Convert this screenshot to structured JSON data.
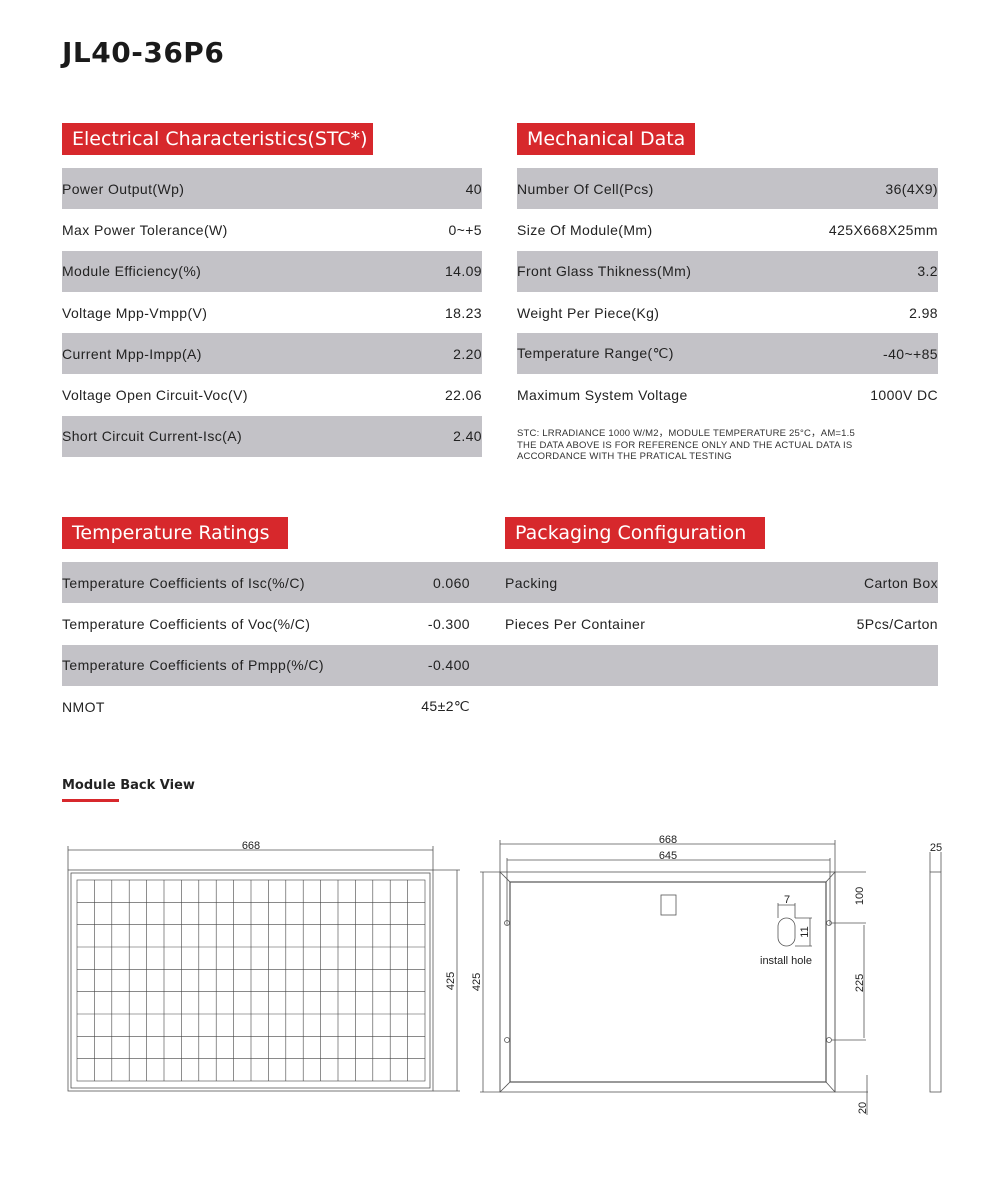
{
  "title": "JL40-36P6",
  "electrical": {
    "heading": "Electrical Characteristics(STC*)",
    "rows": [
      {
        "label": "Power Output(Wp)",
        "value": "40"
      },
      {
        "label": "Max Power Tolerance(W)",
        "value": "0~+5"
      },
      {
        "label": "Module Efficiency(%)",
        "value": "14.09"
      },
      {
        "label": "Voltage Mpp-Vmpp(V)",
        "value": "18.23"
      },
      {
        "label": "Current Mpp-Impp(A)",
        "value": "2.20"
      },
      {
        "label": "Voltage Open Circuit-Voc(V)",
        "value": "22.06"
      },
      {
        "label": "Short Circuit Current-Isc(A)",
        "value": "2.40"
      }
    ]
  },
  "mechanical": {
    "heading": "Mechanical Data",
    "rows": [
      {
        "label": "Number Of Cell(Pcs)",
        "value": "36(4X9)"
      },
      {
        "label": "Size Of Module(Mm)",
        "value": "425X668X25mm"
      },
      {
        "label": "Front Glass Thikness(Mm)",
        "value": "3.2"
      },
      {
        "label": "Weight Per Piece(Kg)",
        "value": "2.98"
      },
      {
        "label": "Temperature Range(℃)",
        "value": "-40~+85"
      },
      {
        "label": "Maximum System Voltage",
        "value": "1000V DC"
      }
    ],
    "note": [
      "STC: LRRADIANCE 1000 W/M2，MODULE TEMPERATURE 25°C，AM=1.5",
      "THE DATA ABOVE IS FOR REFERENCE ONLY AND THE ACTUAL DATA IS",
      "ACCORDANCE WITH THE PRATICAL TESTING"
    ]
  },
  "temperature": {
    "heading": "Temperature Ratings",
    "rows": [
      {
        "label": "Temperature Coefficients of Isc(%/C)",
        "value": "0.060"
      },
      {
        "label": "Temperature Coefficients of Voc(%/C)",
        "value": "-0.300"
      },
      {
        "label": "Temperature Coefficients of Pmpp(%/C)",
        "value": "-0.400"
      },
      {
        "label": "NMOT",
        "value": "45±2℃"
      }
    ]
  },
  "packaging": {
    "heading": "Packaging Configuration",
    "rows": [
      {
        "label": "Packing",
        "value": "Carton Box"
      },
      {
        "label": "Pieces Per Container",
        "value": "5Pcs/Carton"
      }
    ]
  },
  "back_view": {
    "heading": "Module Back View",
    "front": {
      "width": "668",
      "height": "425"
    },
    "back": {
      "width": "668",
      "inner_width": "645",
      "height": "425",
      "hole_w": "7",
      "hole_h": "11",
      "hole_label": "install hole",
      "top_offset": "100",
      "hole_spacing": "225",
      "bottom_offset": "20"
    },
    "side": {
      "thickness": "25"
    }
  },
  "colors": {
    "accent": "#d7282c",
    "row_gray": "#c3c2c7"
  }
}
